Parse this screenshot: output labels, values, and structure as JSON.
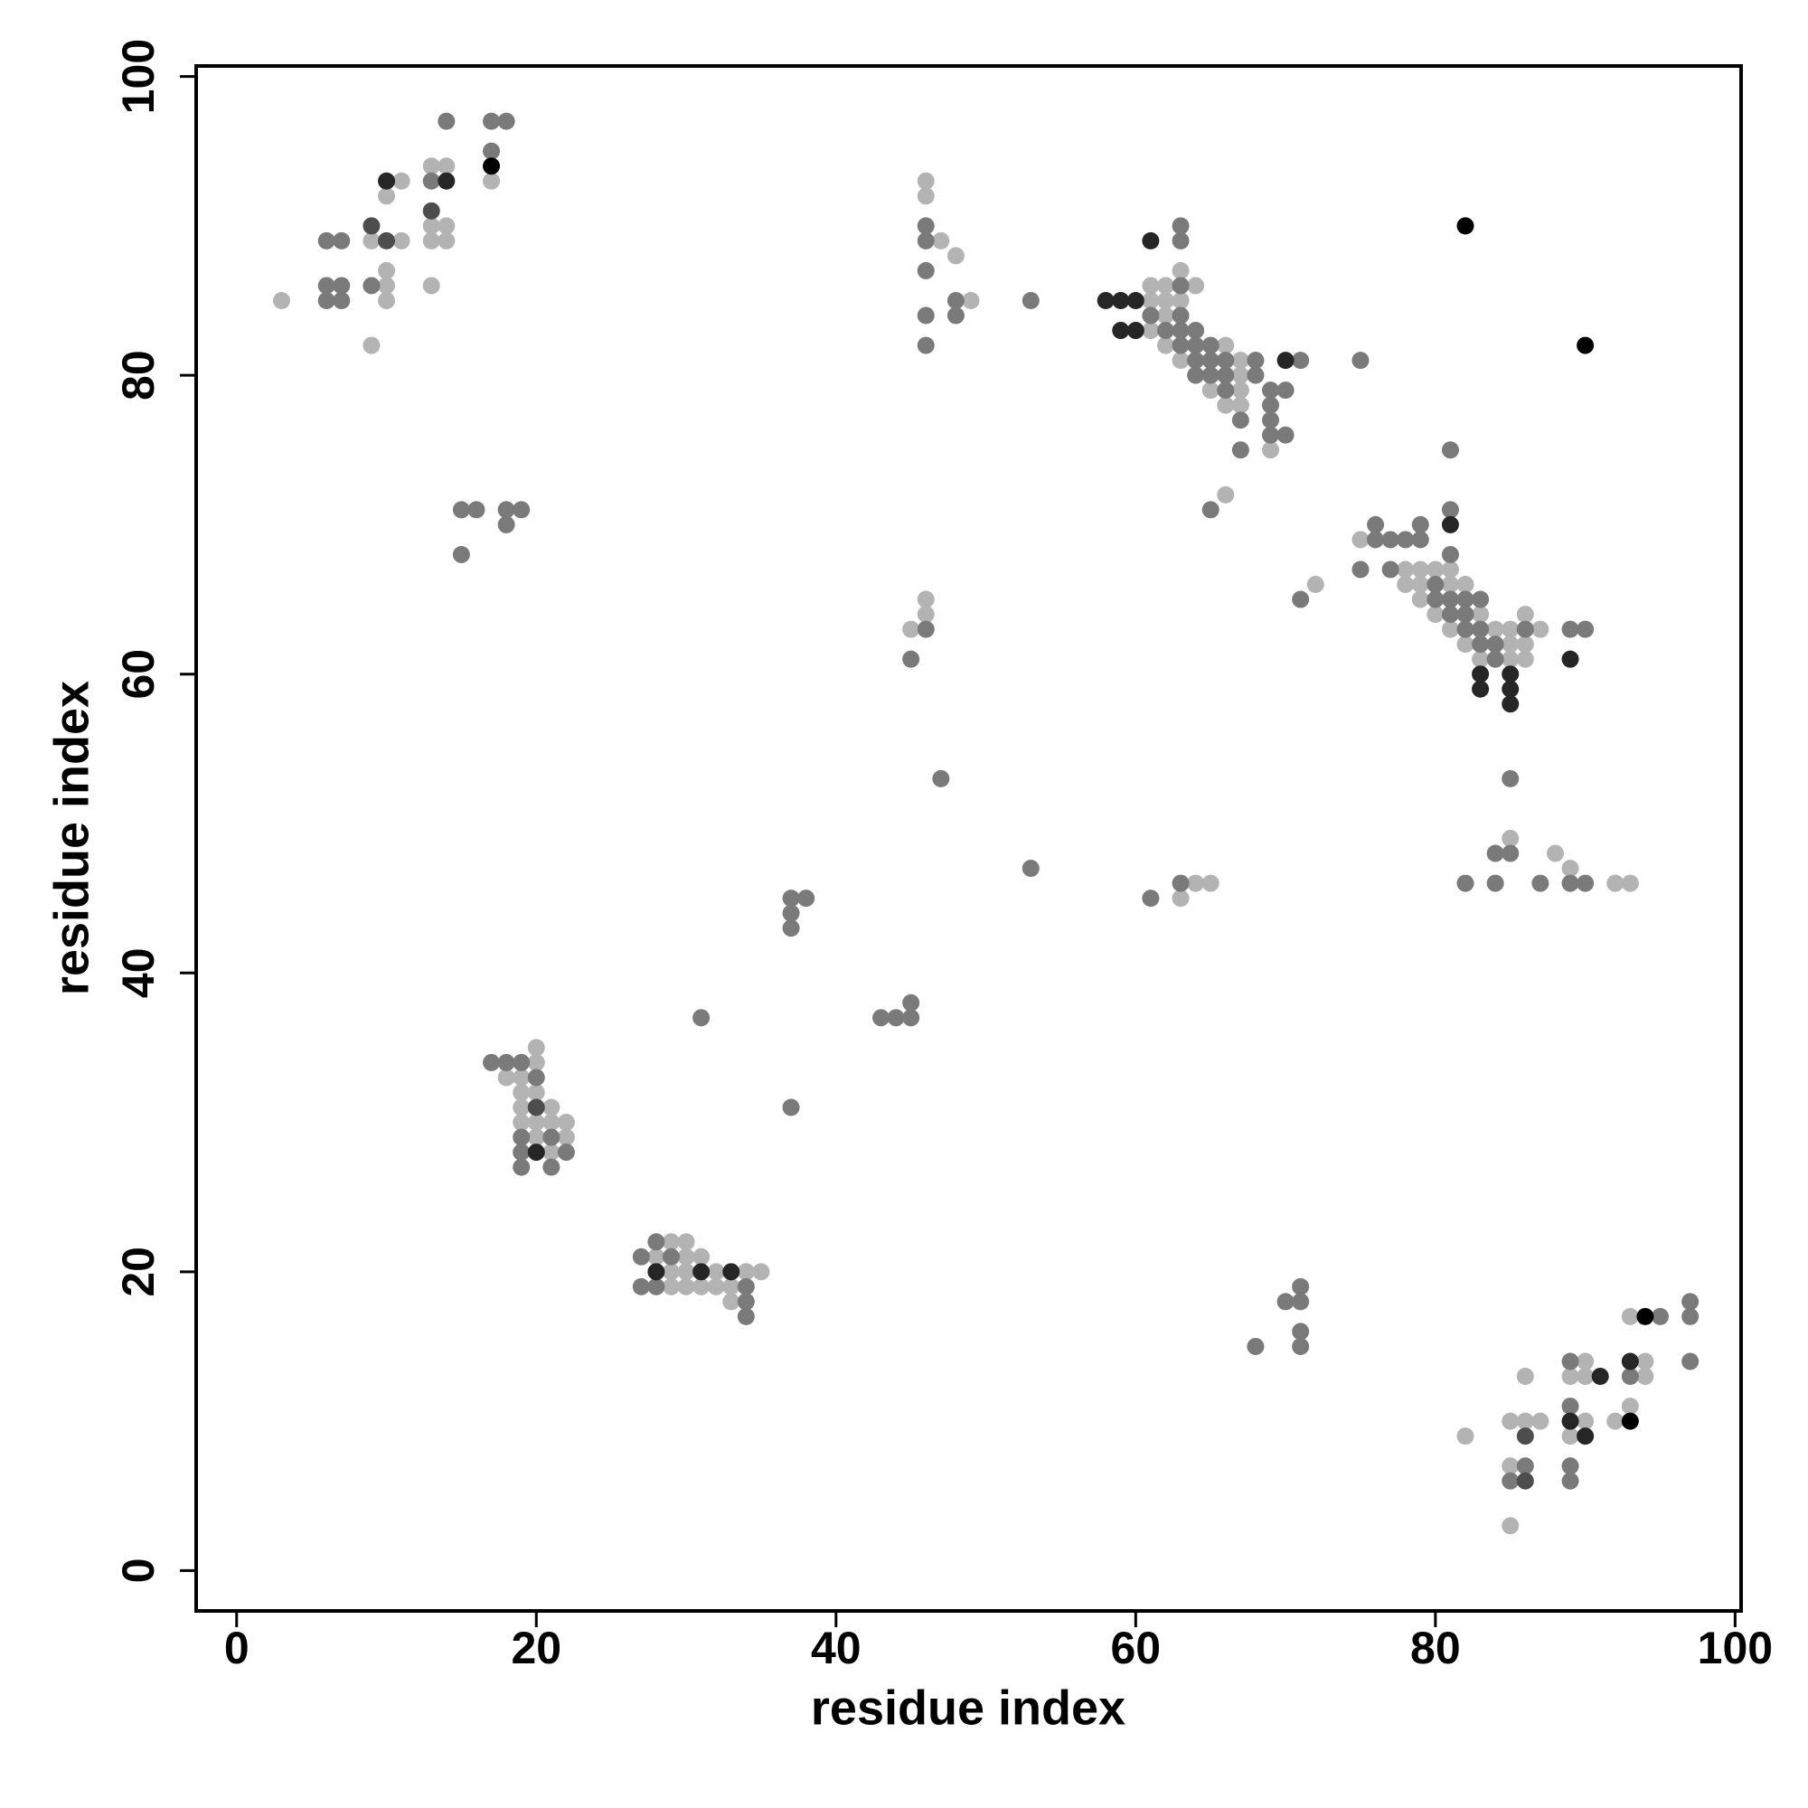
{
  "chart_data": {
    "type": "scatter",
    "xlabel": "residue index",
    "ylabel": "residue index",
    "xlim": [
      -2.7,
      100.4
    ],
    "ylim": [
      -2.7,
      100.7
    ],
    "xticks": [
      0,
      20,
      40,
      60,
      80,
      100
    ],
    "yticks": [
      0,
      20,
      40,
      60,
      80,
      100
    ],
    "grid": false,
    "series": [
      {
        "color": "#b3b3b3",
        "x": [
          3,
          9,
          11,
          10,
          10,
          10,
          9,
          11,
          10,
          13,
          14,
          13,
          14,
          13,
          14,
          13,
          17,
          46,
          46,
          47,
          48,
          49,
          61,
          62,
          64,
          63,
          61,
          62,
          63,
          62,
          61,
          62,
          66,
          63,
          67,
          67,
          65,
          67,
          66,
          67,
          69,
          66,
          75,
          78,
          79,
          80,
          81,
          78,
          79,
          81,
          82,
          79,
          80,
          83,
          81,
          84,
          85,
          87,
          82,
          85,
          86,
          83,
          85,
          86,
          86,
          72,
          46,
          46,
          45,
          64,
          65,
          63,
          85,
          88,
          89,
          92,
          93,
          20,
          20,
          18,
          19,
          19,
          20,
          19,
          21,
          19,
          20,
          21,
          22,
          20,
          22,
          21,
          29,
          30,
          28,
          30,
          31,
          29,
          30,
          32,
          34,
          35,
          29,
          30,
          31,
          32,
          33,
          33,
          82,
          85,
          85,
          85,
          86,
          87,
          86,
          90,
          89,
          90,
          90,
          89,
          92,
          93,
          94,
          94,
          93
        ],
        "values": [
          85,
          89,
          89,
          86,
          87,
          85,
          82,
          93,
          92,
          94,
          94,
          90,
          90,
          89,
          89,
          86,
          93,
          93,
          92,
          89,
          88,
          85,
          86,
          86,
          86,
          87,
          85,
          85,
          85,
          84,
          83,
          82,
          82,
          81,
          81,
          80,
          79,
          79,
          78,
          78,
          75,
          72,
          69,
          67,
          67,
          67,
          67,
          66,
          66,
          66,
          66,
          65,
          64,
          64,
          63,
          63,
          63,
          63,
          62,
          62,
          62,
          61,
          61,
          61,
          64,
          66,
          65,
          64,
          63,
          46,
          46,
          45,
          49,
          48,
          47,
          46,
          46,
          35,
          34,
          33,
          33,
          32,
          32,
          31,
          31,
          30,
          30,
          30,
          30,
          29,
          29,
          28,
          22,
          22,
          21,
          21,
          21,
          20,
          20,
          20,
          20,
          20,
          19,
          19,
          19,
          19,
          19,
          18,
          9,
          3,
          7,
          10,
          10,
          10,
          13,
          14,
          13,
          13,
          10,
          9,
          10,
          11,
          14,
          13,
          17
        ]
      },
      {
        "color": "#7a7a7a",
        "x": [
          6,
          7,
          6,
          7,
          6,
          7,
          9,
          13,
          14,
          17,
          18,
          17,
          16,
          15,
          15,
          18,
          19,
          18,
          46,
          46,
          46,
          48,
          48,
          46,
          46,
          53,
          63,
          63,
          63,
          61,
          63,
          62,
          63,
          64,
          63,
          64,
          65,
          64,
          65,
          66,
          68,
          64,
          65,
          66,
          68,
          66,
          69,
          70,
          69,
          67,
          69,
          69,
          70,
          67,
          71,
          65,
          75,
          81,
          81,
          76,
          79,
          76,
          77,
          78,
          79,
          81,
          75,
          77,
          80,
          80,
          81,
          82,
          83,
          81,
          82,
          82,
          83,
          86,
          83,
          84,
          84,
          89,
          90,
          71,
          46,
          45,
          47,
          53,
          61,
          63,
          85,
          84,
          85,
          82,
          84,
          87,
          89,
          90,
          37,
          38,
          37,
          37,
          43,
          44,
          45,
          45,
          31,
          37,
          17,
          18,
          19,
          20,
          19,
          21,
          19,
          22,
          19,
          21,
          28,
          27,
          29,
          27,
          28,
          34,
          34,
          34,
          68,
          70,
          71,
          71,
          71,
          71,
          86,
          85,
          89,
          89,
          89,
          89,
          93,
          95,
          97,
          97,
          97
        ],
        "values": [
          89,
          89,
          86,
          86,
          85,
          85,
          86,
          93,
          97,
          97,
          97,
          95,
          71,
          71,
          68,
          71,
          71,
          70,
          90,
          89,
          87,
          85,
          84,
          84,
          82,
          85,
          90,
          89,
          86,
          84,
          84,
          83,
          83,
          83,
          82,
          82,
          82,
          81,
          81,
          81,
          81,
          80,
          80,
          80,
          80,
          79,
          79,
          79,
          78,
          77,
          77,
          76,
          76,
          75,
          81,
          71,
          81,
          75,
          71,
          70,
          70,
          69,
          69,
          69,
          69,
          68,
          67,
          67,
          66,
          65,
          65,
          65,
          65,
          64,
          64,
          63,
          63,
          63,
          62,
          62,
          61,
          63,
          63,
          65,
          63,
          61,
          53,
          47,
          45,
          46,
          53,
          48,
          48,
          46,
          46,
          46,
          46,
          46,
          45,
          45,
          44,
          43,
          37,
          37,
          37,
          38,
          37,
          31,
          34,
          34,
          34,
          33,
          29,
          29,
          28,
          28,
          27,
          27,
          22,
          21,
          21,
          19,
          19,
          19,
          18,
          17,
          15,
          18,
          18,
          19,
          16,
          15,
          7,
          6,
          14,
          11,
          7,
          6,
          13,
          17,
          18,
          17,
          14
        ]
      },
      {
        "color": "#4d4d4d",
        "x": [
          9,
          10,
          13,
          20,
          86,
          86
        ],
        "values": [
          90,
          89,
          91,
          31,
          6,
          9
        ]
      },
      {
        "color": "#262626",
        "x": [
          10,
          14,
          58,
          59,
          60,
          59,
          60,
          61,
          70,
          81,
          83,
          85,
          83,
          85,
          85,
          89,
          20,
          28,
          31,
          33,
          91,
          89,
          90,
          93
        ],
        "values": [
          93,
          93,
          85,
          85,
          85,
          83,
          83,
          89,
          81,
          70,
          60,
          60,
          59,
          59,
          58,
          61,
          28,
          20,
          20,
          20,
          13,
          10,
          9,
          14
        ]
      },
      {
        "color": "#000000",
        "x": [
          17,
          82,
          90,
          93,
          94
        ],
        "values": [
          94,
          90,
          82,
          10,
          17
        ]
      }
    ]
  }
}
